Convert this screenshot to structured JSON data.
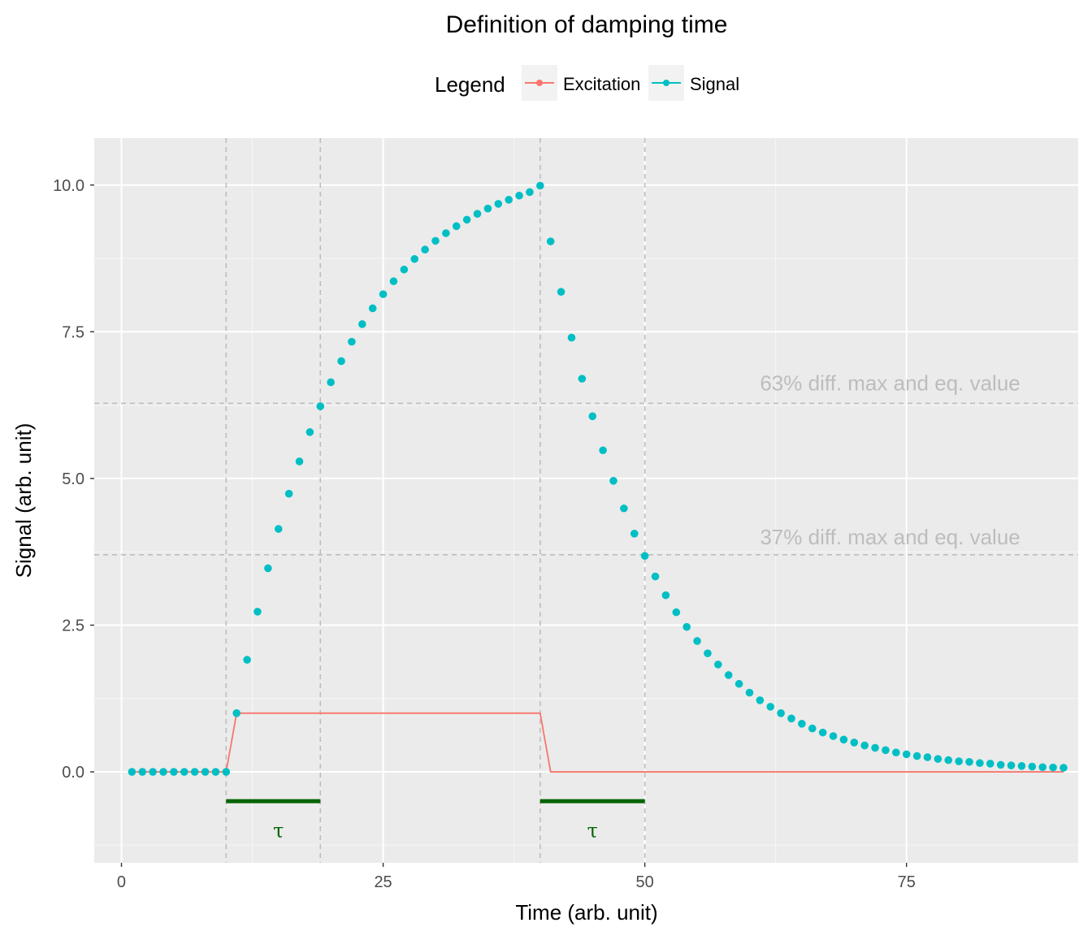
{
  "chart_data": {
    "type": "scatter",
    "title": "Definition of damping time",
    "xlabel": "Time (arb. unit)",
    "ylabel": "Signal (arb. unit)",
    "xlim": [
      -2.6,
      91.4
    ],
    "ylim": [
      -1.55,
      10.8
    ],
    "x_ticks": [
      0,
      25,
      50,
      75
    ],
    "x_tick_labels": [
      "0",
      "25",
      "50",
      "75"
    ],
    "y_ticks": [
      0,
      2.5,
      5,
      7.5,
      10
    ],
    "y_tick_labels": [
      "0.0",
      "2.5",
      "5.0",
      "7.5",
      "10.0"
    ],
    "grid": true,
    "legend": {
      "title": "Legend",
      "position": "top",
      "entries": [
        {
          "label": "Excitation",
          "color": "#F8766D"
        },
        {
          "label": "Signal",
          "color": "#00BFC4"
        }
      ]
    },
    "series": [
      {
        "name": "Excitation",
        "type": "line",
        "color": "#F8766D",
        "x": [
          1,
          10,
          11,
          40,
          41,
          90
        ],
        "y": [
          0,
          0,
          1,
          1,
          0,
          0
        ]
      },
      {
        "name": "Signal",
        "type": "scatter",
        "color": "#00BFC4",
        "x": [
          1,
          2,
          3,
          4,
          5,
          6,
          7,
          8,
          9,
          10,
          11,
          12,
          13,
          14,
          15,
          16,
          17,
          18,
          19,
          20,
          21,
          22,
          23,
          24,
          25,
          26,
          27,
          28,
          29,
          30,
          31,
          32,
          33,
          34,
          35,
          36,
          37,
          38,
          39,
          40,
          41,
          42,
          43,
          44,
          45,
          46,
          47,
          48,
          49,
          50,
          51,
          52,
          53,
          54,
          55,
          56,
          57,
          58,
          59,
          60,
          61,
          62,
          63,
          64,
          65,
          66,
          67,
          68,
          69,
          70,
          71,
          72,
          73,
          74,
          75,
          76,
          77,
          78,
          79,
          80,
          81,
          82,
          83,
          84,
          85,
          86,
          87,
          88,
          89,
          90
        ],
        "y": [
          0,
          0,
          0,
          0,
          0,
          0,
          0,
          0,
          0,
          0,
          1.0,
          1.91,
          2.73,
          3.47,
          4.14,
          4.74,
          5.29,
          5.79,
          6.23,
          6.64,
          7.0,
          7.33,
          7.63,
          7.9,
          8.14,
          8.36,
          8.56,
          8.74,
          8.9,
          9.05,
          9.18,
          9.3,
          9.41,
          9.51,
          9.6,
          9.68,
          9.75,
          9.82,
          9.88,
          9.99,
          9.04,
          8.18,
          7.4,
          6.7,
          6.06,
          5.48,
          4.96,
          4.49,
          4.06,
          3.68,
          3.33,
          3.01,
          2.72,
          2.47,
          2.23,
          2.02,
          1.83,
          1.65,
          1.5,
          1.35,
          1.22,
          1.11,
          1.0,
          0.91,
          0.82,
          0.74,
          0.67,
          0.61,
          0.55,
          0.5,
          0.45,
          0.41,
          0.37,
          0.33,
          0.3,
          0.27,
          0.25,
          0.22,
          0.2,
          0.18,
          0.17,
          0.15,
          0.14,
          0.12,
          0.11,
          0.1,
          0.09,
          0.08,
          0.075,
          0.07
        ]
      }
    ],
    "reference_lines": {
      "vertical": [
        10,
        19,
        40,
        50
      ],
      "horizontal": [
        6.28,
        3.7
      ],
      "color": "#bdbdbd"
    },
    "annotations": [
      {
        "text": "63% diff. max and eq. value",
        "x": 61,
        "y": 6.5,
        "color": "#bdbdbd"
      },
      {
        "text": "37% diff. max and eq. value",
        "x": 61,
        "y": 3.88,
        "color": "#bdbdbd"
      }
    ],
    "tau_markers": [
      {
        "x_start": 10,
        "x_end": 19,
        "y": -0.5,
        "label": "τ",
        "label_x": 15,
        "label_y": -1.0
      },
      {
        "x_start": 40,
        "x_end": 50,
        "y": -0.5,
        "label": "τ",
        "label_x": 45,
        "label_y": -1.0
      }
    ],
    "tau_color": "#006400"
  }
}
